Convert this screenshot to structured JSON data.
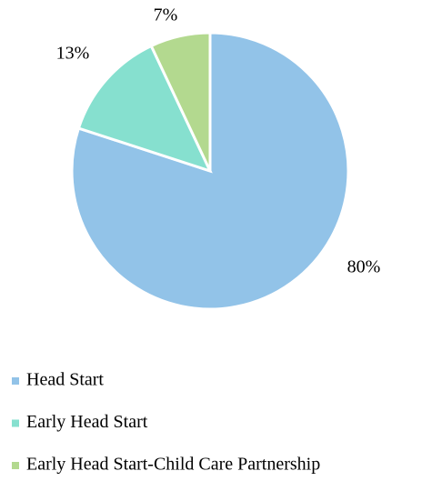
{
  "chart_data": {
    "type": "pie",
    "categories": [
      "Head Start",
      "Early Head Start",
      "Early Head Start-Child Care Partnership"
    ],
    "values": [
      80,
      13,
      7
    ],
    "value_labels": [
      "80%",
      "13%",
      "7%"
    ],
    "colors": [
      "#92c3e8",
      "#86e0cf",
      "#b3d98f"
    ],
    "legend": "bottom-left"
  }
}
